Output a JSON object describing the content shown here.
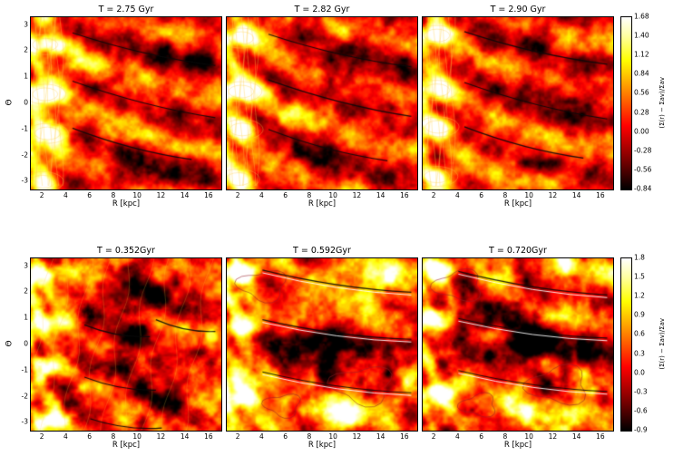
{
  "chart_data": {
    "type": "heatmap",
    "colormap": "hot",
    "description": "Six polar-grid (R vs Theta) surface-density residual maps of a simulated spiral galaxy at six snapshot times, arranged in two rows of three panels. Bright yellow/white ridges trace spiral arms, dark patches are under-dense regions, thin contour lines overlay the density field, and black curved segments mark fitted spiral-arm loci.",
    "axes": {
      "xlabel": "R [kpc]",
      "ylabel": "Θ",
      "x_ticks": [
        2,
        4,
        6,
        8,
        10,
        12,
        14,
        16
      ],
      "x_range": [
        1,
        17
      ],
      "y_ticks": [
        3,
        2,
        1,
        0,
        -1,
        -2,
        -3
      ],
      "y_range": [
        -3.3,
        3.3
      ],
      "grid": false
    },
    "rows": [
      {
        "panels": [
          {
            "title": "T = 2.75 Gyr"
          },
          {
            "title": "T = 2.82 Gyr"
          },
          {
            "title": "T = 2.90 Gyr"
          }
        ],
        "colorbar": {
          "label": "(Σ(r) − Σav)/Σav",
          "vmin": -0.84,
          "vmax": 1.68,
          "ticks": [
            "1.68",
            "1.40",
            "1.12",
            "0.84",
            "0.56",
            "0.28",
            "0.00",
            "-0.28",
            "-0.56",
            "-0.84"
          ]
        }
      },
      {
        "panels": [
          {
            "title": "T = 0.352Gyr"
          },
          {
            "title": "T = 0.592Gyr"
          },
          {
            "title": "T = 0.720Gyr"
          }
        ],
        "colorbar": {
          "label": "(Σ(r) − Σav)/Σav",
          "vmin": -0.9,
          "vmax": 1.8,
          "ticks": [
            "1.8",
            "1.5",
            "1.2",
            "0.9",
            "0.6",
            "0.3",
            "0.0",
            "-0.3",
            "-0.6",
            "-0.9"
          ]
        }
      }
    ],
    "overlays": {
      "black_arm_segments": true,
      "contour_lines": true
    }
  }
}
